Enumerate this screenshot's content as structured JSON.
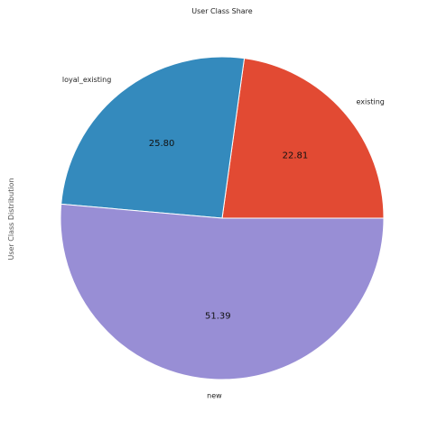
{
  "chart_data": {
    "type": "pie",
    "title": "User Class Share",
    "ylabel": "User Class Distribution",
    "slices": [
      {
        "label": "existing",
        "value": 22.81,
        "value_text": "22.81",
        "color": "#e24a33"
      },
      {
        "label": "loyal_existing",
        "value": 25.8,
        "value_text": "25.80",
        "color": "#348abd"
      },
      {
        "label": "new",
        "value": 51.39,
        "value_text": "51.39",
        "color": "#988ed5"
      }
    ]
  }
}
